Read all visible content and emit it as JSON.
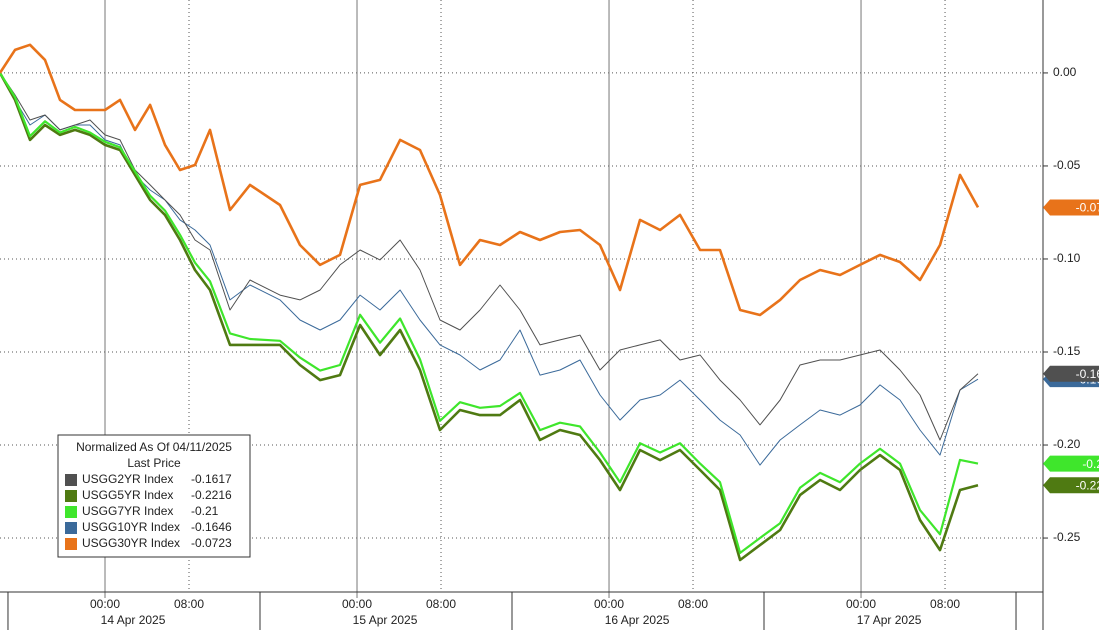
{
  "chart_data": {
    "type": "line",
    "legend_title": "Normalized As Of 04/11/2025",
    "legend_subtitle": "Last Price",
    "x": [
      -10,
      -8.57,
      -7.14,
      -5.71,
      -4.29,
      -2.86,
      -1.43,
      0,
      1.43,
      2.86,
      4.29,
      5.71,
      7.14,
      8.57,
      10,
      11.9,
      13.81,
      16.67,
      18.57,
      20.48,
      22.38,
      24.29,
      26.19,
      28.1,
      30,
      31.9,
      33.81,
      35.71,
      37.62,
      39.52,
      41.43,
      43.33,
      45.24,
      47.14,
      49.05,
      50.95,
      52.86,
      54.76,
      56.67,
      58.57,
      60.48,
      62.38,
      64.29,
      66.19,
      68.1,
      70,
      71.9,
      73.81,
      75.71,
      77.62,
      79.52,
      81.43,
      83.14
    ],
    "series": [
      {
        "name": "USGG2YR Index",
        "color": "#505050",
        "last": -0.1617,
        "values": [
          0,
          -0.0118,
          -0.0253,
          -0.0226,
          -0.0306,
          -0.028,
          -0.0253,
          -0.0333,
          -0.036,
          -0.0522,
          -0.0602,
          -0.0683,
          -0.0763,
          -0.0898,
          -0.0952,
          -0.1274,
          -0.1113,
          -0.1194,
          -0.122,
          -0.1167,
          -0.1032,
          -0.0952,
          -0.1005,
          -0.0898,
          -0.1059,
          -0.1328,
          -0.1382,
          -0.1274,
          -0.114,
          -0.1274,
          -0.1462,
          -0.1435,
          -0.1409,
          -0.1597,
          -0.1489,
          -0.1462,
          -0.1435,
          -0.1543,
          -0.1516,
          -0.1651,
          -0.1758,
          -0.1892,
          -0.1758,
          -0.157,
          -0.1543,
          -0.1543,
          -0.1516,
          -0.1489,
          -0.1597,
          -0.1731,
          -0.1973,
          -0.1704,
          -0.1617
        ]
      },
      {
        "name": "USGG5YR Index",
        "color": "#4f7a12",
        "last": -0.2216,
        "values": [
          0,
          -0.0145,
          -0.036,
          -0.028,
          -0.0333,
          -0.0306,
          -0.0333,
          -0.0387,
          -0.0414,
          -0.0548,
          -0.0683,
          -0.0763,
          -0.0898,
          -0.1059,
          -0.1167,
          -0.1462,
          -0.1462,
          -0.1462,
          -0.157,
          -0.1651,
          -0.1624,
          -0.1355,
          -0.1516,
          -0.1382,
          -0.1597,
          -0.1919,
          -0.1812,
          -0.1839,
          -0.1839,
          -0.1758,
          -0.1973,
          -0.1919,
          -0.1946,
          -0.2081,
          -0.2242,
          -0.2027,
          -0.2081,
          -0.2027,
          -0.2134,
          -0.2242,
          -0.2618,
          -0.2538,
          -0.2457,
          -0.2269,
          -0.2188,
          -0.2242,
          -0.2134,
          -0.2054,
          -0.2134,
          -0.2403,
          -0.2565,
          -0.2242,
          -0.2216
        ]
      },
      {
        "name": "USGG7YR Index",
        "color": "#3fe62c",
        "last": -0.21,
        "values": [
          0,
          -0.013,
          -0.034,
          -0.026,
          -0.032,
          -0.029,
          -0.032,
          -0.037,
          -0.04,
          -0.053,
          -0.066,
          -0.074,
          -0.087,
          -0.102,
          -0.112,
          -0.14,
          -0.143,
          -0.144,
          -0.153,
          -0.16,
          -0.157,
          -0.13,
          -0.145,
          -0.132,
          -0.154,
          -0.187,
          -0.177,
          -0.18,
          -0.179,
          -0.172,
          -0.192,
          -0.188,
          -0.19,
          -0.204,
          -0.22,
          -0.199,
          -0.204,
          -0.199,
          -0.21,
          -0.22,
          -0.258,
          -0.25,
          -0.242,
          -0.223,
          -0.215,
          -0.22,
          -0.21,
          -0.202,
          -0.21,
          -0.235,
          -0.248,
          -0.208,
          -0.21
        ]
      },
      {
        "name": "USGG10YR Index",
        "color": "#3b6a9a",
        "last": -0.1646,
        "values": [
          0,
          -0.0145,
          -0.028,
          -0.0226,
          -0.0306,
          -0.028,
          -0.028,
          -0.036,
          -0.0387,
          -0.0548,
          -0.0629,
          -0.0683,
          -0.079,
          -0.0844,
          -0.0925,
          -0.122,
          -0.114,
          -0.122,
          -0.1328,
          -0.1382,
          -0.1328,
          -0.1194,
          -0.1274,
          -0.1167,
          -0.1328,
          -0.1462,
          -0.1516,
          -0.1597,
          -0.1543,
          -0.1382,
          -0.1624,
          -0.1597,
          -0.1543,
          -0.1731,
          -0.1866,
          -0.1758,
          -0.1731,
          -0.1651,
          -0.1758,
          -0.1866,
          -0.1946,
          -0.2108,
          -0.1973,
          -0.1892,
          -0.1812,
          -0.1839,
          -0.1785,
          -0.1677,
          -0.1758,
          -0.1919,
          -0.2054,
          -0.1704,
          -0.1646
        ]
      },
      {
        "name": "USGG30YR Index",
        "color": "#e8731a",
        "last": -0.0723,
        "values": [
          0,
          0.0124,
          0.0151,
          0.007,
          -0.0145,
          -0.0199,
          -0.0199,
          -0.0199,
          -0.0145,
          -0.0306,
          -0.0172,
          -0.0387,
          -0.0522,
          -0.0495,
          -0.0306,
          -0.0737,
          -0.0602,
          -0.071,
          -0.0925,
          -0.1032,
          -0.0978,
          -0.0602,
          -0.0575,
          -0.036,
          -0.0414,
          -0.0656,
          -0.1032,
          -0.0898,
          -0.0925,
          -0.0855,
          -0.0898,
          -0.0855,
          -0.0844,
          -0.0925,
          -0.1167,
          -0.079,
          -0.0844,
          -0.0763,
          -0.0952,
          -0.0952,
          -0.1274,
          -0.1301,
          -0.122,
          -0.1113,
          -0.1059,
          -0.1086,
          -0.1032,
          -0.0978,
          -0.1016,
          -0.1113,
          -0.0925,
          -0.0548,
          -0.0723
        ]
      }
    ],
    "xlim": [
      -10,
      89.33
    ],
    "xticks": [
      {
        "value": 0,
        "label": "00:00"
      },
      {
        "value": 8,
        "label": "08:00"
      },
      {
        "value": 24,
        "label": "00:00"
      },
      {
        "value": 32,
        "label": "08:00"
      },
      {
        "value": 48,
        "label": "00:00"
      },
      {
        "value": 56,
        "label": "08:00"
      },
      {
        "value": 72,
        "label": "00:00"
      },
      {
        "value": 80,
        "label": "08:00"
      }
    ],
    "x_dates": [
      "14 Apr 2025",
      "15 Apr 2025",
      "16 Apr 2025",
      "17 Apr 2025"
    ],
    "ylim": [
      -0.279,
      0.0392
    ],
    "yticks": [
      {
        "value": 0,
        "label": "0.00"
      },
      {
        "value": -0.05,
        "label": "-0.05"
      },
      {
        "value": -0.1,
        "label": "-0.10"
      },
      {
        "value": -0.15,
        "label": "-0.15"
      },
      {
        "value": -0.2,
        "label": "-0.20"
      },
      {
        "value": -0.25,
        "label": "-0.25"
      }
    ],
    "grid": true
  }
}
